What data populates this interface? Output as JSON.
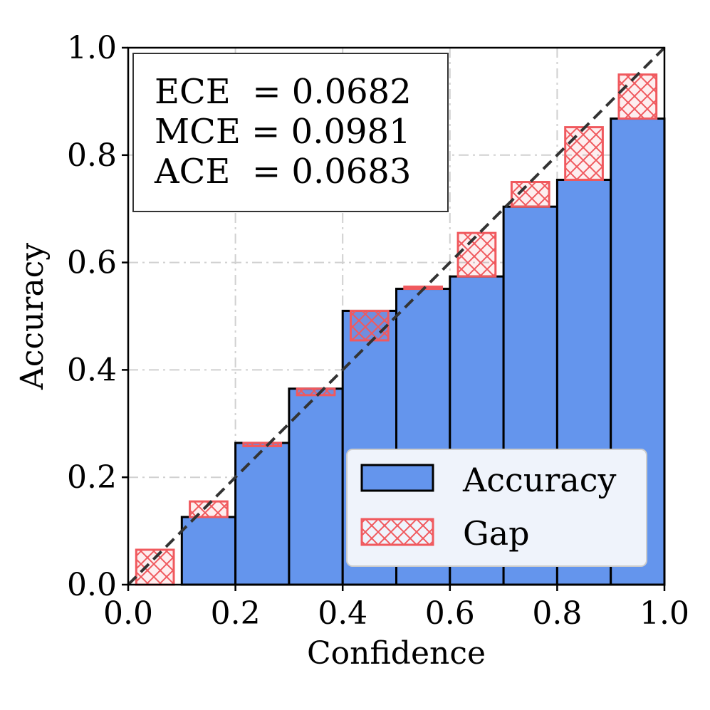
{
  "chart_data": {
    "type": "bar",
    "title": "",
    "xlabel": "Confidence",
    "ylabel": "Accuracy",
    "xlim": [
      0.0,
      1.0
    ],
    "ylim": [
      0.0,
      1.0
    ],
    "grid": true,
    "bins": [
      {
        "lo": 0.0,
        "hi": 0.1,
        "accuracy": 0.0,
        "confidence": 0.065
      },
      {
        "lo": 0.1,
        "hi": 0.2,
        "accuracy": 0.126,
        "confidence": 0.155
      },
      {
        "lo": 0.2,
        "hi": 0.3,
        "accuracy": 0.264,
        "confidence": 0.258
      },
      {
        "lo": 0.3,
        "hi": 0.4,
        "accuracy": 0.365,
        "confidence": 0.353
      },
      {
        "lo": 0.4,
        "hi": 0.5,
        "accuracy": 0.51,
        "confidence": 0.455
      },
      {
        "lo": 0.5,
        "hi": 0.6,
        "accuracy": 0.551,
        "confidence": 0.555
      },
      {
        "lo": 0.6,
        "hi": 0.7,
        "accuracy": 0.574,
        "confidence": 0.655
      },
      {
        "lo": 0.7,
        "hi": 0.8,
        "accuracy": 0.704,
        "confidence": 0.75
      },
      {
        "lo": 0.8,
        "hi": 0.9,
        "accuracy": 0.754,
        "confidence": 0.852
      },
      {
        "lo": 0.9,
        "hi": 1.0,
        "accuracy": 0.868,
        "confidence": 0.95
      }
    ],
    "x_ticks": [
      "0.0",
      "0.2",
      "0.4",
      "0.6",
      "0.8",
      "1.0"
    ],
    "y_ticks": [
      "0.0",
      "0.2",
      "0.4",
      "0.6",
      "0.8",
      "1.0"
    ],
    "metrics": [
      "ECE  = 0.0682",
      "MCE = 0.0981",
      "ACE  = 0.0683"
    ],
    "legend": {
      "position": "lower-right",
      "entries": [
        {
          "label": "Accuracy",
          "kind": "bar"
        },
        {
          "label": "Gap",
          "kind": "gap"
        }
      ]
    },
    "colors": {
      "accuracy_fill": "#6495ed",
      "bar_edge": "#000000",
      "gap_edge": "#f0595e",
      "gap_fill": "rgba(240,89,94,0.10)",
      "diagonal": "#333333",
      "grid": "#d0d0d0"
    }
  }
}
